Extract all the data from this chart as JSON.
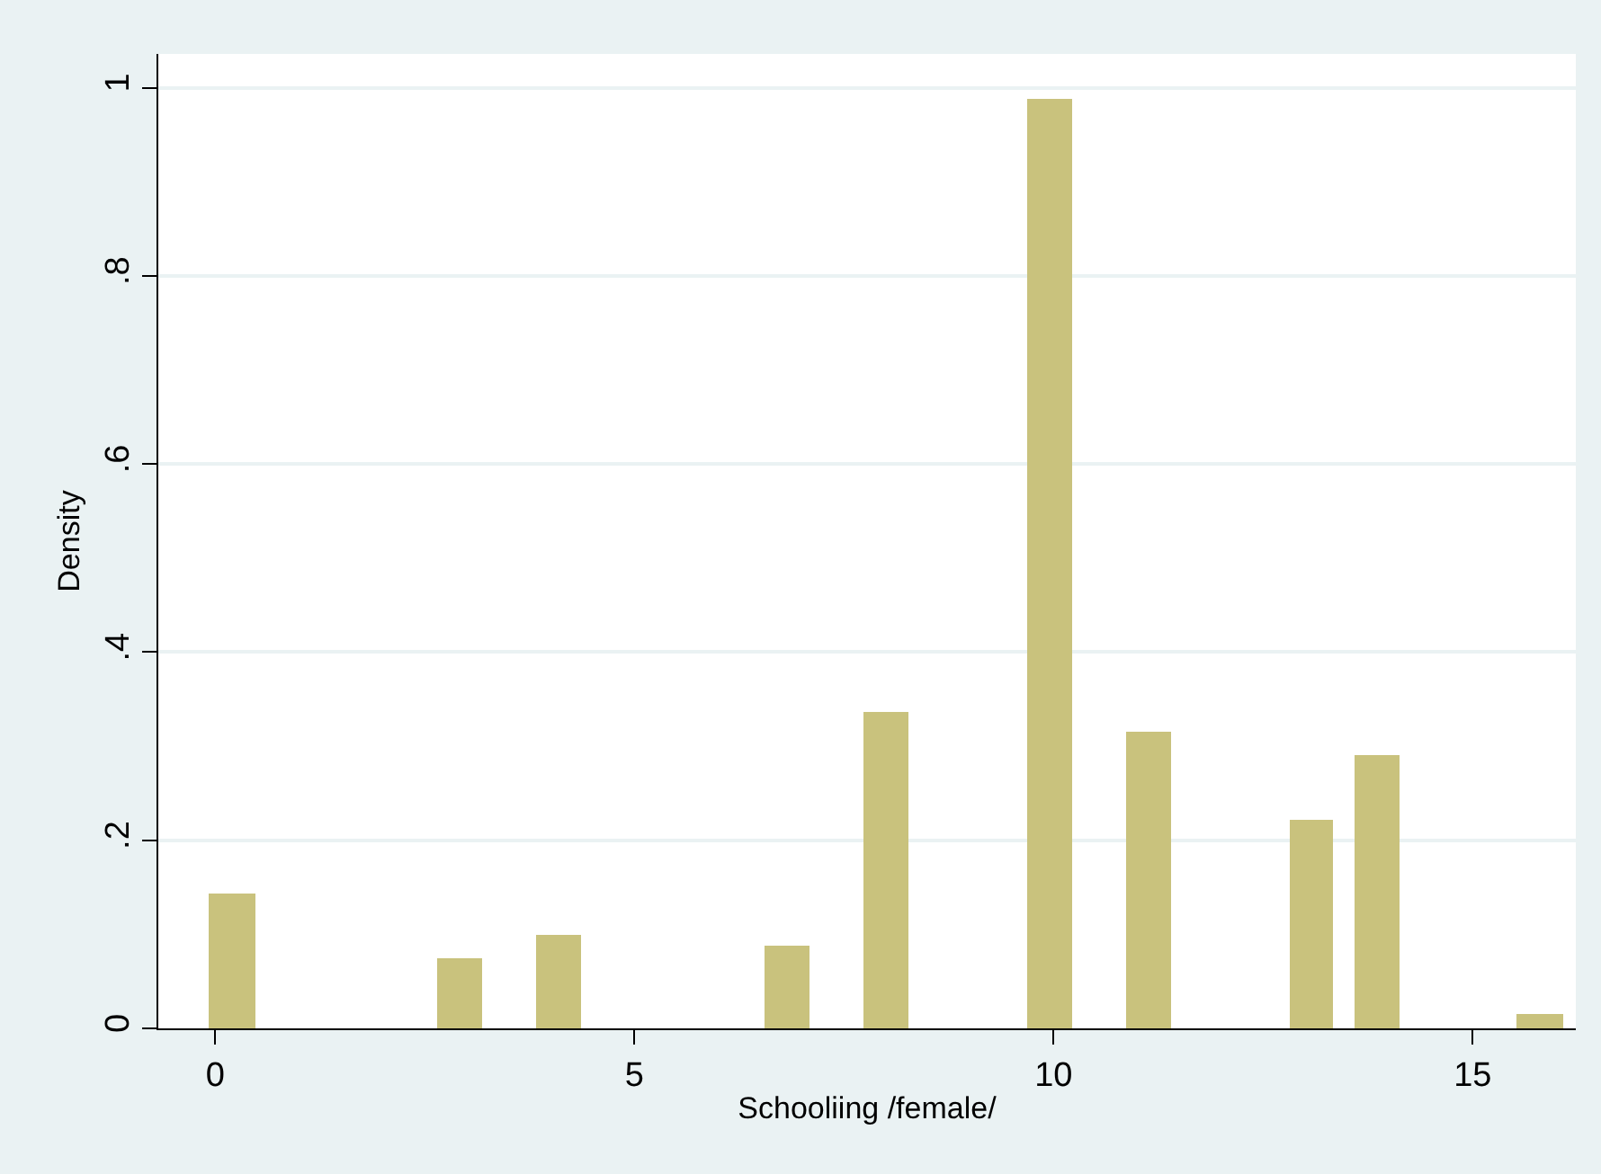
{
  "chart_data": {
    "type": "histogram",
    "xlabel": "Schooliing /female/",
    "ylabel": "Density",
    "bins": [
      -0.08,
      0.47,
      2.65,
      3.19,
      3.83,
      4.36,
      6.56,
      7.08,
      7.74,
      8.27,
      9.69,
      10.23,
      10.86,
      11.4,
      12.82,
      13.34,
      13.6,
      14.12,
      15.53,
      16.07
    ],
    "values": [
      0.144,
      0,
      0.075,
      0,
      0.099,
      0,
      0.087,
      0,
      0.337,
      0,
      0.988,
      0,
      0.315,
      0,
      0.222,
      0,
      0.291,
      0,
      0.016
    ],
    "color": "#c9c27d",
    "xlim": [
      -0.68,
      16.23
    ],
    "xticks": [
      0,
      5,
      10,
      15
    ],
    "ylim": [
      0,
      1.036
    ],
    "yticks": [
      0,
      {
        "value": 0.2,
        "label": ".2"
      },
      {
        "value": 0.4,
        "label": ".4"
      },
      {
        "value": 0.6,
        "label": ".6"
      },
      {
        "value": 0.8,
        "label": ".8"
      },
      1
    ],
    "grid": "y"
  }
}
